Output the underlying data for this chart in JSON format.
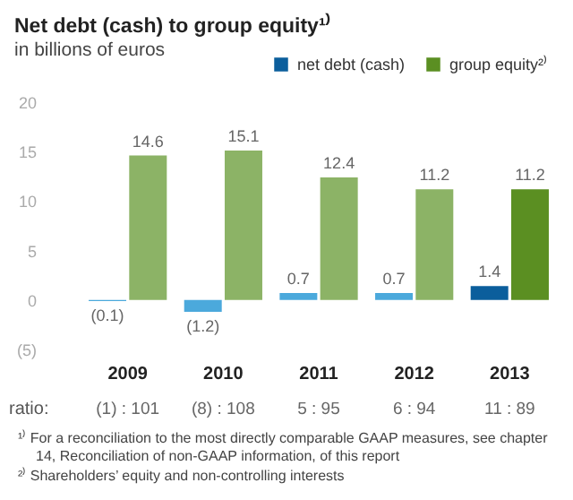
{
  "chart_data": {
    "type": "bar",
    "title": "Net debt (cash) to group equity¹⁾",
    "subtitle": "in billions of euros",
    "categories": [
      "2009",
      "2010",
      "2011",
      "2012",
      "2013"
    ],
    "series": [
      {
        "name": "net debt (cash)",
        "color": "#0b5e9c",
        "colors": [
          "#4ba9dc",
          "#4ba9dc",
          "#4ba9dc",
          "#4ba9dc",
          "#0b5e9c"
        ],
        "values": [
          -0.1,
          -1.2,
          0.7,
          0.7,
          1.4
        ],
        "value_labels": [
          "(0.1)",
          "(1.2)",
          "0.7",
          "0.7",
          "1.4"
        ]
      },
      {
        "name": "group equity²⁾",
        "color": "#5b8f22",
        "colors": [
          "#8cb366",
          "#8cb366",
          "#8cb366",
          "#8cb366",
          "#5b8f22"
        ],
        "values": [
          14.6,
          15.1,
          12.4,
          11.2,
          11.2
        ],
        "value_labels": [
          "14.6",
          "15.1",
          "12.4",
          "11.2",
          "11.2"
        ]
      }
    ],
    "ylim": [
      -5,
      20
    ],
    "yticks": [
      {
        "value": -5,
        "label": "(5)"
      },
      0,
      5,
      10,
      15,
      20
    ],
    "grid": false,
    "legend": "top right",
    "annotations": [
      "ratio:",
      "(1) : 101",
      "(8) : 108",
      "5 : 95",
      "6 : 94",
      "11 : 89",
      "¹⁾ For a reconciliation to the most directly comparable GAAP measures, see chapter 14, Reconciliation of non-GAAP information, of this report",
      "²⁾ Shareholders’ equity and non-controlling interests"
    ]
  }
}
